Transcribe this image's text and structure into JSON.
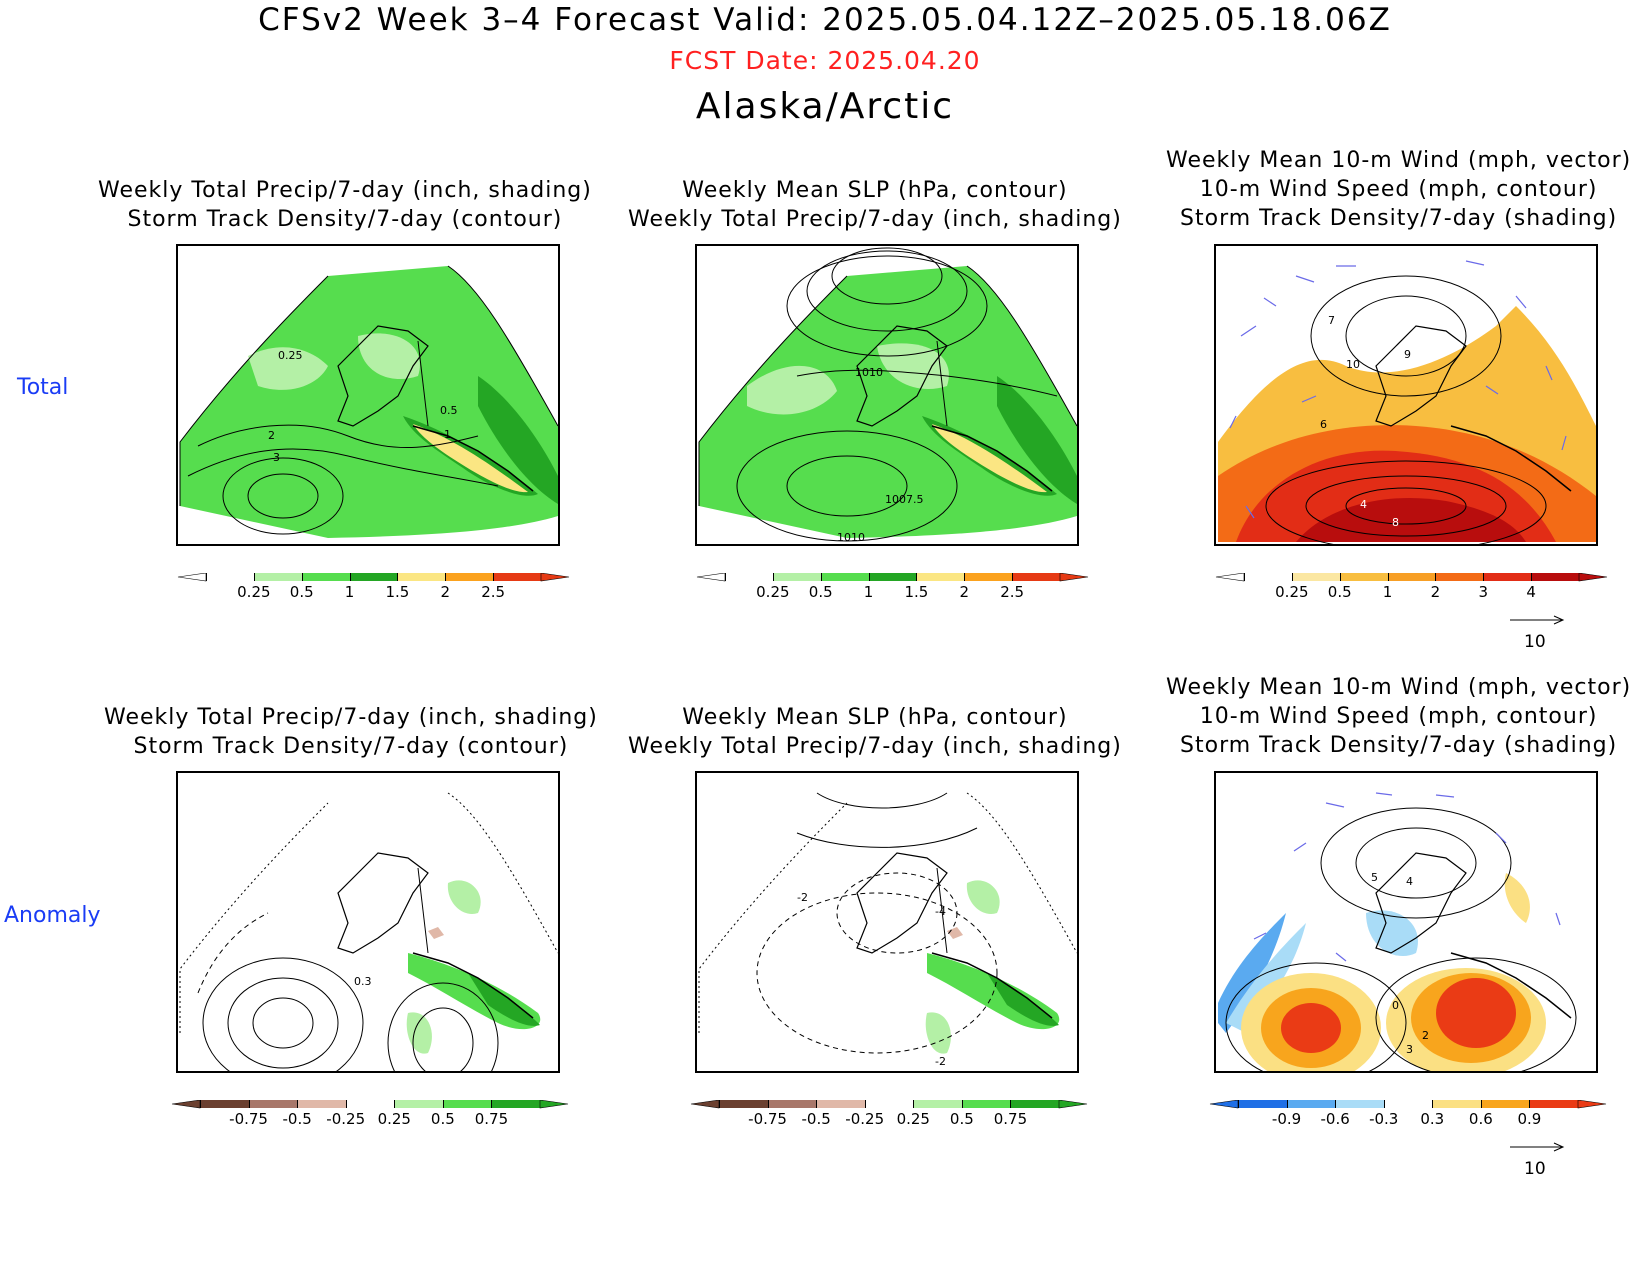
{
  "header": {
    "title": "CFSv2 Week 3–4 Forecast        Valid: 2025.05.04.12Z–2025.05.18.06Z",
    "fcst_date": "FCST Date: 2025.04.20",
    "region": "Alaska/Arctic"
  },
  "rows": {
    "total_label": "Total",
    "anomaly_label": "Anomaly"
  },
  "panels": {
    "precip_storm": {
      "line1": "Weekly Total Precip/7-day (inch, shading)",
      "line2": "Storm Track Density/7-day (contour)"
    },
    "slp_precip": {
      "line1": "Weekly Mean SLP (hPa, contour)",
      "line2": "Weekly Total Precip/7-day (inch, shading)"
    },
    "wind_storm": {
      "line1": "Weekly Mean 10-m Wind (mph, vector)",
      "line2": "10-m Wind Speed (mph, contour)",
      "line3": "Storm Track Density/7-day (shading)"
    }
  },
  "contour_labels": {
    "total_precip": [
      "0.25",
      "2",
      "3",
      "0.5",
      "1"
    ],
    "total_slp": [
      "1010",
      "1007.5",
      "1010"
    ],
    "total_wind": [
      "7",
      "10",
      "9",
      "6",
      "4",
      "8"
    ],
    "anom_precip": [
      "0.3"
    ],
    "anom_slp": [
      "-2",
      "-4",
      "-2"
    ],
    "anom_wind": [
      "5",
      "4",
      "0",
      "2",
      "3"
    ]
  },
  "colorbars": {
    "total_precip": [
      "0.25",
      "0.5",
      "1",
      "1.5",
      "2",
      "2.5"
    ],
    "total_storm": [
      "0.25",
      "0.5",
      "1",
      "2",
      "3",
      "4"
    ],
    "anom_precip": [
      "-0.75",
      "-0.5",
      "-0.25",
      "0.25",
      "0.5",
      "0.75"
    ],
    "anom_storm": [
      "-0.9",
      "-0.6",
      "-0.3",
      "0.3",
      "0.6",
      "0.9"
    ],
    "vector_ref": "10"
  },
  "colors": {
    "precip": [
      "#b4f0a6",
      "#56dd4e",
      "#24a624",
      "#fbe683",
      "#fba21e",
      "#e63a14"
    ],
    "precip_anom_neg": [
      "#6b4030",
      "#a8776a",
      "#e0b8a8"
    ],
    "precip_anom_pos": [
      "#b4f0a6",
      "#56dd4e",
      "#24a624"
    ],
    "storm_total": [
      "#fbe7a2",
      "#f8be40",
      "#f79f25",
      "#f36b16",
      "#e22d16",
      "#b80d0d"
    ],
    "storm_anom_neg": [
      "#1f6fe6",
      "#5aaaf0",
      "#a9dcf7"
    ],
    "storm_anom_pos": [
      "#fbe083",
      "#f8a51d",
      "#ea3b15"
    ],
    "title_red": "#ff2020",
    "row_label_blue": "#1a3cf5",
    "vector": "#6a6ae8"
  }
}
